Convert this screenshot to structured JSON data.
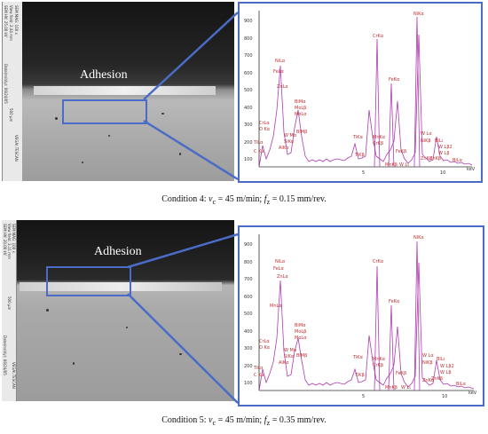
{
  "figures": [
    {
      "sem_label": "Adhesion",
      "caption": "Condition 4: vc = 45 m/min; fz = 0.15 mm/rev.",
      "caption_parts": {
        "prefix": "Condition 4: ",
        "v": "v",
        "v_sub": "c",
        "v_rest": " = 45 m/min; ",
        "f": "f",
        "f_sub": "z",
        "f_rest": " = 0.15 mm/rev."
      },
      "sem_scale_label": "500 µm",
      "sem_strip_texts": [
        "SEM HV: 25.00 kV",
        "View field: 2.44 mm",
        "SEM MAG: 100 x",
        "Date(m/d/y): 06/24/05",
        "VEGA\\ TESCAN"
      ],
      "eds": {
        "ytick_labels": [
          "900",
          "800",
          "700",
          "600",
          "500",
          "400",
          "300",
          "200",
          "100"
        ],
        "xtick_labels": [
          "5",
          "10"
        ],
        "x_unit": "keV",
        "peak_labels": [
          "NiKα",
          "CrKα",
          "FeKα",
          "NiLα",
          "FeLα",
          "ZnLα",
          "BiMα",
          "MoLβ",
          "MoLα",
          "BiMβ",
          "W Mα",
          "SiKα",
          "AlKα",
          "CrLα",
          "O Kα",
          "TiLα",
          "C Kα",
          "TiKα",
          "TiKβ",
          "MnKα",
          "CrKβ",
          "FeKβ",
          "MnKβ",
          "W Lι",
          "W Lα",
          "NiKβ",
          "ZnKα",
          "BiLι",
          "W Lβ2",
          "W Lβ",
          "ZnKβ",
          "BiLα"
        ]
      }
    },
    {
      "sem_label": "Adhesion",
      "caption": "Condition 5: vc = 45 m/min; fz = 0.35 mm/rev.",
      "caption_parts": {
        "prefix": "Condition 5: ",
        "v": "v",
        "v_sub": "c",
        "v_rest": " = 45 m/min; ",
        "f": "f",
        "f_sub": "z",
        "f_rest": " = 0.35 mm/rev."
      },
      "sem_scale_label": "500 µm",
      "sem_strip_texts": [
        "SEM HV: 20.00 kV",
        "View field: 3.11 mm",
        "SEM MAG: 100 x",
        "Date(m/d/y): 06/24/05",
        "VEGA\\ TESCAN"
      ],
      "eds": {
        "ytick_labels": [
          "900",
          "800",
          "700",
          "600",
          "500",
          "400",
          "300",
          "200",
          "100"
        ],
        "xtick_labels": [
          "5",
          "10"
        ],
        "x_unit": "keV",
        "peak_labels": [
          "NiKα",
          "CrKα",
          "FeKα",
          "NiLα",
          "FeLα",
          "ZnLα",
          "MnLα",
          "BiMα",
          "MoLβ",
          "MoLα",
          "BiMβ",
          "W Mα",
          "SiKα",
          "AlKα",
          "CrLα",
          "O Kα",
          "TiLα",
          "C Kα",
          "TiKα",
          "TiKβ",
          "MnKα",
          "CrKβ",
          "FeKβ",
          "MnKβ",
          "W Lι",
          "W Lα",
          "NiKβ",
          "ZnKα",
          "BiLι",
          "W Lβ2",
          "W Lβ",
          "ZnKβ",
          "BiLα"
        ]
      }
    }
  ],
  "colors": {
    "frame": "#4a6cc7",
    "spectrum": "#b03ab0",
    "peak_label": "#c03030"
  }
}
